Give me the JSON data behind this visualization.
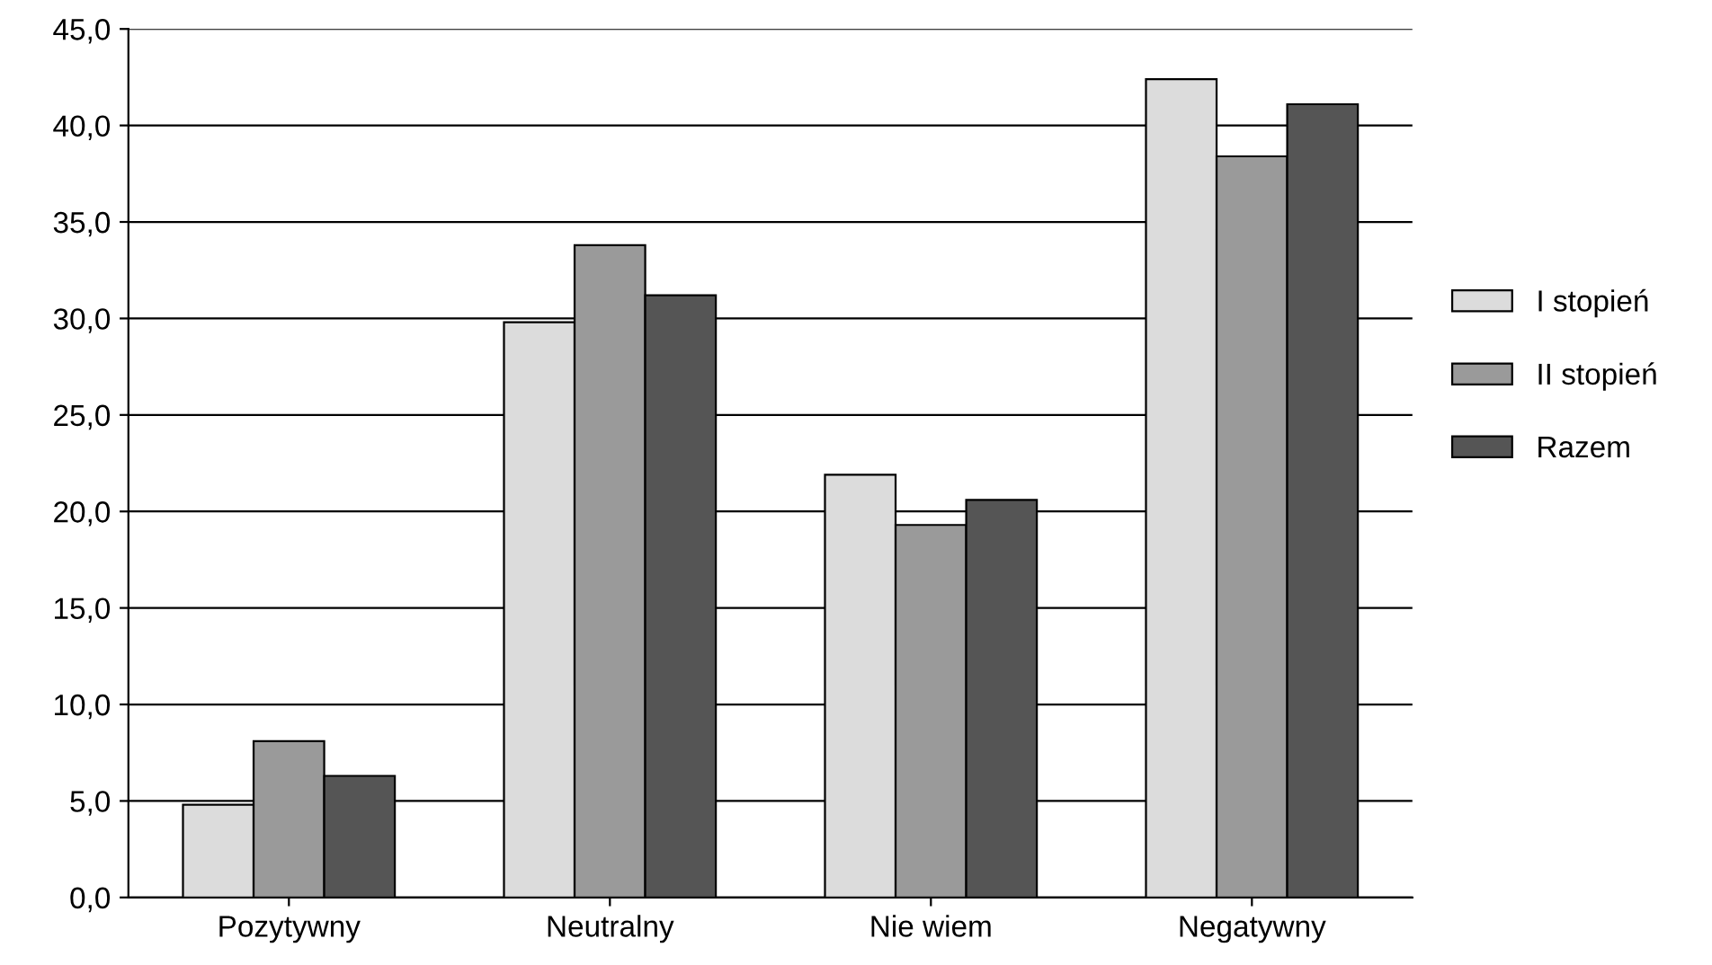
{
  "chart_data": {
    "type": "bar",
    "categories": [
      "Pozytywny",
      "Neutralny",
      "Nie wiem",
      "Negatywny"
    ],
    "series": [
      {
        "name": "I stopień",
        "color": "#dcdcdc",
        "values": [
          4.8,
          29.8,
          21.9,
          42.4
        ]
      },
      {
        "name": "II stopień",
        "color": "#9a9a9a",
        "values": [
          8.1,
          33.8,
          19.3,
          38.4
        ]
      },
      {
        "name": "Razem",
        "color": "#555555",
        "values": [
          6.3,
          31.2,
          20.6,
          41.1
        ]
      }
    ],
    "ylim": [
      0,
      45
    ],
    "yticks": [
      {
        "value": 0,
        "label": "0,0"
      },
      {
        "value": 5,
        "label": "5,0"
      },
      {
        "value": 10,
        "label": "10,0"
      },
      {
        "value": 15,
        "label": "15,0"
      },
      {
        "value": 20,
        "label": "20,0"
      },
      {
        "value": 25,
        "label": "25,0"
      },
      {
        "value": 30,
        "label": "30,0"
      },
      {
        "value": 35,
        "label": "35,0"
      },
      {
        "value": 40,
        "label": "40,0"
      },
      {
        "value": 45,
        "label": "45,0"
      }
    ],
    "grid": "y",
    "legend": "right"
  }
}
